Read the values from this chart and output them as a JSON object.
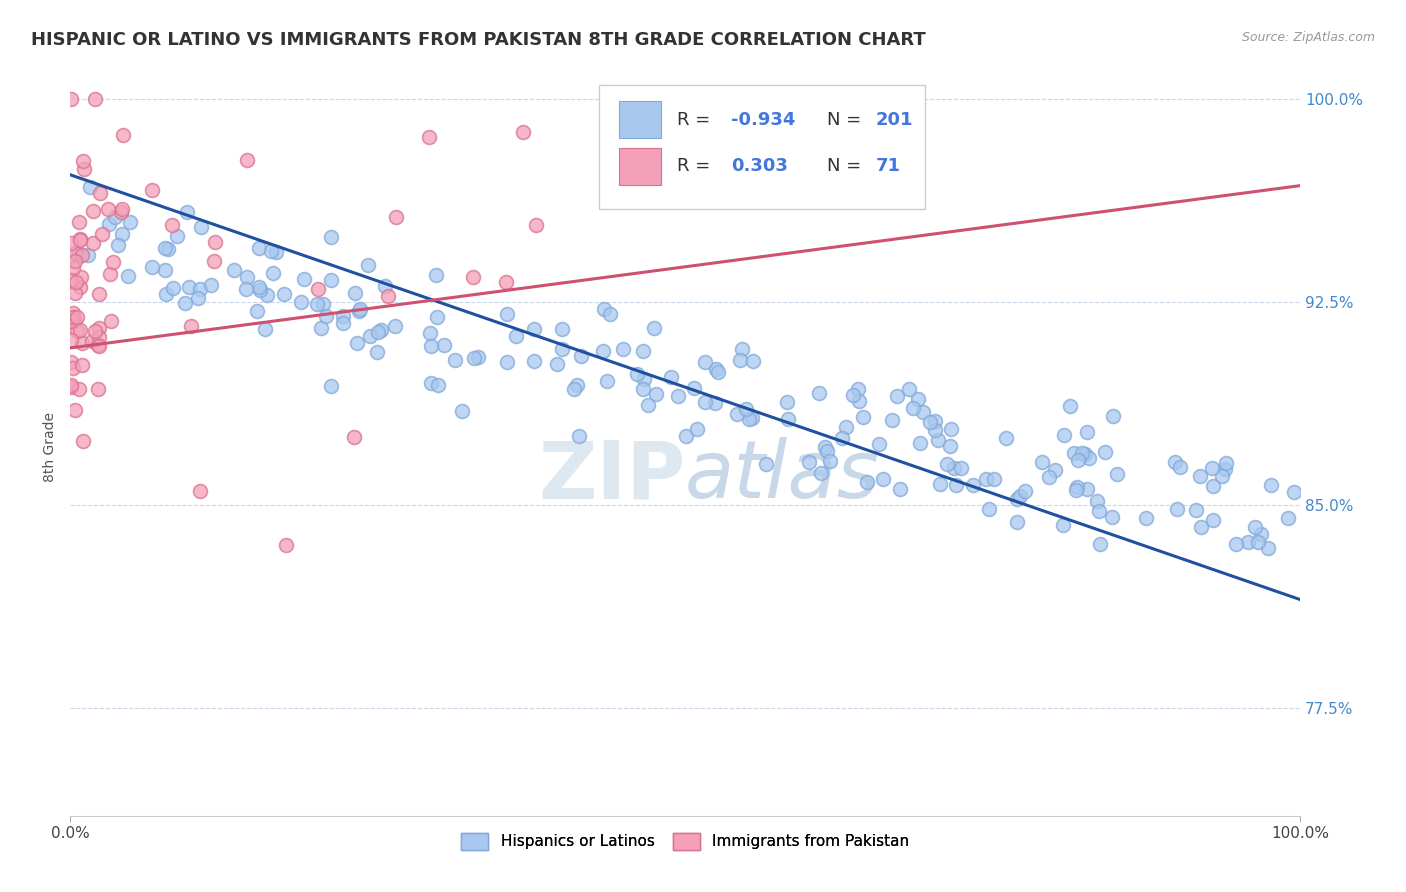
{
  "title": "HISPANIC OR LATINO VS IMMIGRANTS FROM PAKISTAN 8TH GRADE CORRELATION CHART",
  "source_text": "Source: ZipAtlas.com",
  "ylabel": "8th Grade",
  "x_min": 0.0,
  "x_max": 1.0,
  "y_min": 0.735,
  "y_max": 1.008,
  "y_ticks": [
    0.775,
    0.85,
    0.925,
    1.0
  ],
  "y_tick_labels": [
    "77.5%",
    "85.0%",
    "92.5%",
    "100.0%"
  ],
  "blue_R": -0.934,
  "blue_N": 201,
  "pink_R": 0.303,
  "pink_N": 71,
  "blue_color": "#a8c8f0",
  "blue_edge_color": "#80a8d8",
  "pink_color": "#f4a0b8",
  "pink_edge_color": "#d87090",
  "blue_line_color": "#2050a0",
  "pink_line_color": "#d05070",
  "legend_blue_label": "Hispanics or Latinos",
  "legend_pink_label": "Immigrants from Pakistan",
  "watermark_zip": "ZIP",
  "watermark_atlas": "atlas",
  "background_color": "#ffffff",
  "grid_color": "#c8d8e8",
  "title_fontsize": 13,
  "axis_label_fontsize": 10,
  "blue_line_start_y": 0.972,
  "blue_line_end_y": 0.815,
  "pink_line_start_y": 0.908,
  "pink_line_end_y": 0.968
}
